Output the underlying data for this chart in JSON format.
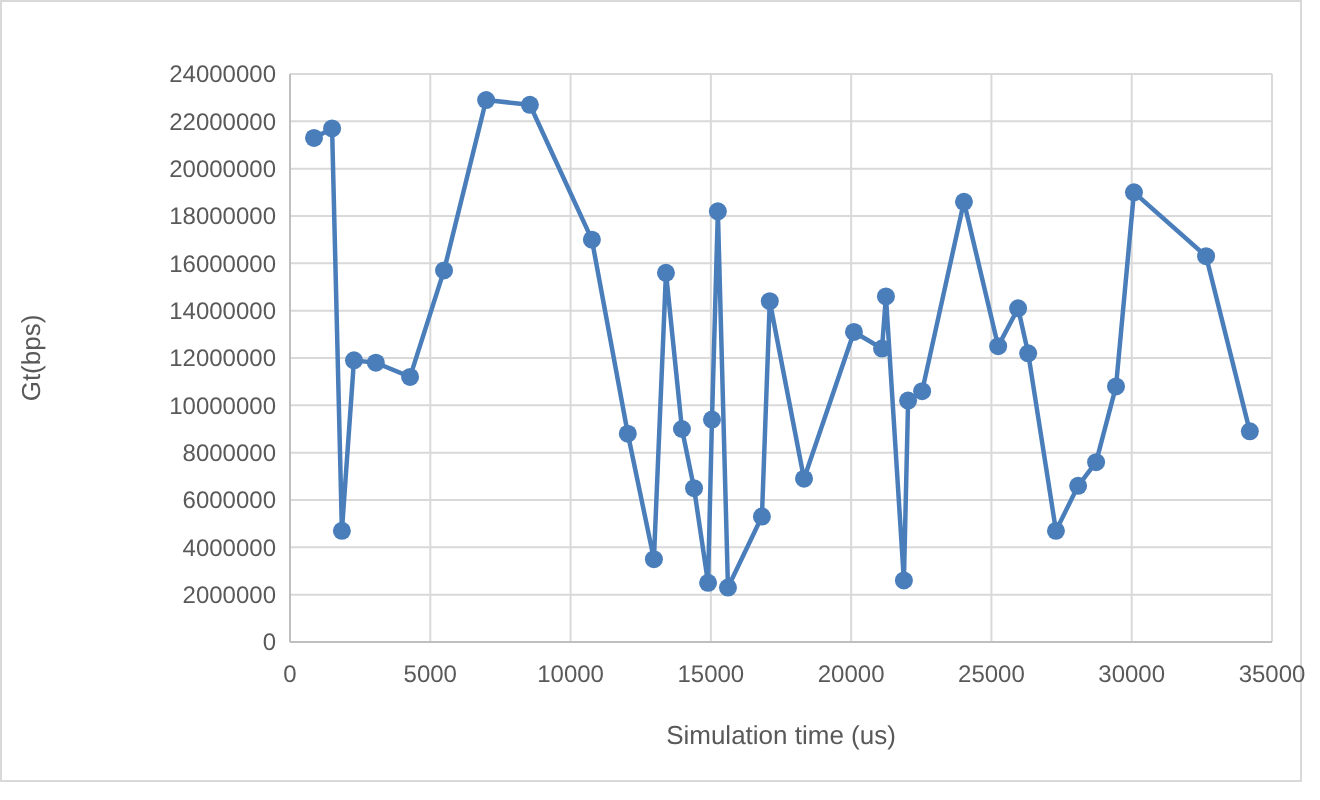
{
  "chart_data": {
    "type": "line",
    "xlabel": "Simulation time (us)",
    "ylabel": "Gt(bps)",
    "xlim": [
      0,
      35000
    ],
    "xticks": [
      0,
      5000,
      10000,
      15000,
      20000,
      25000,
      30000,
      35000
    ],
    "ylim": [
      0,
      24000000
    ],
    "yticks": [
      0,
      2000000,
      4000000,
      6000000,
      8000000,
      10000000,
      12000000,
      14000000,
      16000000,
      18000000,
      20000000,
      22000000,
      24000000
    ],
    "grid": true,
    "marker": "circle",
    "line_style": "solid",
    "series": [
      {
        "color": "#4a7ebb",
        "x": [
          855,
          1500,
          1850,
          2280,
          3060,
          4280,
          5490,
          6990,
          8550,
          10760,
          12040,
          12970,
          13400,
          13970,
          14400,
          14900,
          15040,
          15250,
          15610,
          16820,
          17100,
          18320,
          20100,
          21100,
          21240,
          21880,
          22030,
          22530,
          24020,
          25240,
          25950,
          26310,
          27300,
          28090,
          28730,
          29440,
          30080,
          32650,
          34210
        ],
        "values": [
          21300000,
          21700000,
          4700000,
          11900000,
          11800000,
          11200000,
          15700000,
          22900000,
          22700000,
          17000000,
          8800000,
          3500000,
          15600000,
          9000000,
          6500000,
          2500000,
          9400000,
          18200000,
          2300000,
          5300000,
          14400000,
          6900000,
          13100000,
          12400000,
          14600000,
          2600000,
          10200000,
          10600000,
          18600000,
          12500000,
          14100000,
          12200000,
          4700000,
          6600000,
          7600000,
          10800000,
          19000000,
          16300000,
          8900000
        ]
      }
    ]
  }
}
